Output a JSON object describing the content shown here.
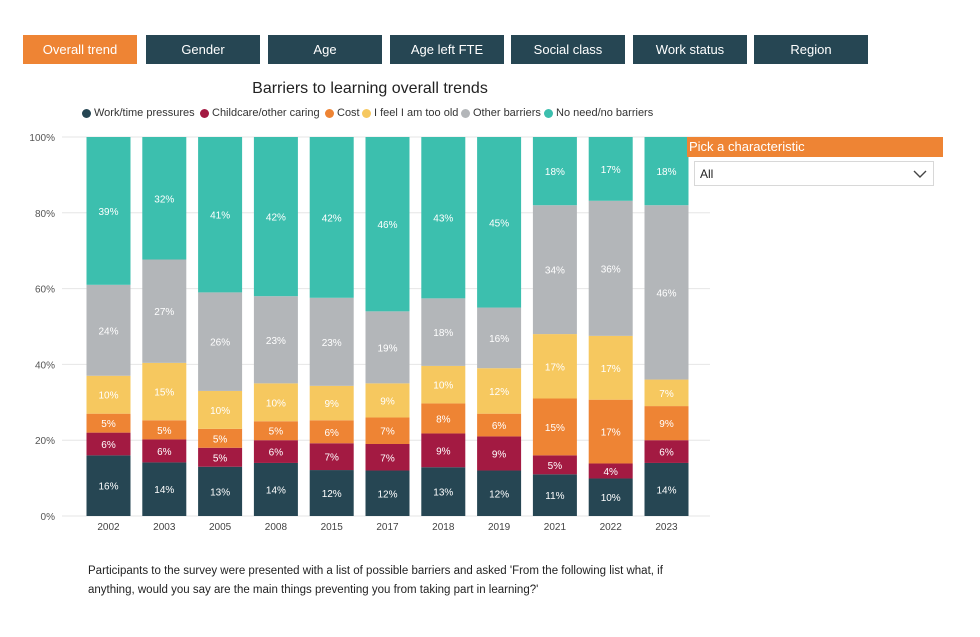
{
  "tabs": [
    {
      "label": "Overall trend",
      "active": true
    },
    {
      "label": "Gender",
      "active": false
    },
    {
      "label": "Age",
      "active": false
    },
    {
      "label": "Age left FTE",
      "active": false
    },
    {
      "label": "Social class",
      "active": false
    },
    {
      "label": "Work status",
      "active": false
    },
    {
      "label": "Region",
      "active": false
    }
  ],
  "picker": {
    "label": "Pick a characteristic",
    "selected": "All"
  },
  "footnote": "Participants to the survey were presented with a list of possible barriers and asked 'From the following list what, if anything, would you say are the main things preventing you from taking part in learning?'",
  "chart_data": {
    "type": "bar",
    "stacked": true,
    "title": "Barriers to learning overall trends",
    "xlabel": "",
    "ylabel": "",
    "ylim": [
      0,
      100
    ],
    "yticks": [
      "0%",
      "20%",
      "40%",
      "60%",
      "80%",
      "100%"
    ],
    "legend_position": "top",
    "grid": true,
    "categories": [
      "2002",
      "2003",
      "2005",
      "2008",
      "2015",
      "2017",
      "2018",
      "2019",
      "2021",
      "2022",
      "2023"
    ],
    "series": [
      {
        "name": "Work/time pressures",
        "color": "#264653",
        "values": [
          16,
          14,
          13,
          14,
          12,
          12,
          13,
          12,
          11,
          10,
          14
        ]
      },
      {
        "name": "Childcare/other caring",
        "color": "#A31A42",
        "values": [
          6,
          6,
          5,
          6,
          7,
          7,
          9,
          9,
          5,
          4,
          6
        ]
      },
      {
        "name": "Cost",
        "color": "#EE8434",
        "values": [
          5,
          5,
          5,
          5,
          6,
          7,
          8,
          6,
          15,
          17,
          9
        ]
      },
      {
        "name": "I feel I am too old",
        "color": "#F6C85F",
        "values": [
          10,
          15,
          10,
          10,
          9,
          9,
          10,
          12,
          17,
          17,
          7
        ]
      },
      {
        "name": "Other barriers",
        "color": "#B3B6B9",
        "values": [
          24,
          27,
          26,
          23,
          23,
          19,
          18,
          16,
          34,
          36,
          46
        ]
      },
      {
        "name": "No need/no barriers",
        "color": "#3CBFAE",
        "values": [
          39,
          32,
          41,
          42,
          42,
          46,
          43,
          45,
          18,
          17,
          18
        ]
      }
    ]
  }
}
